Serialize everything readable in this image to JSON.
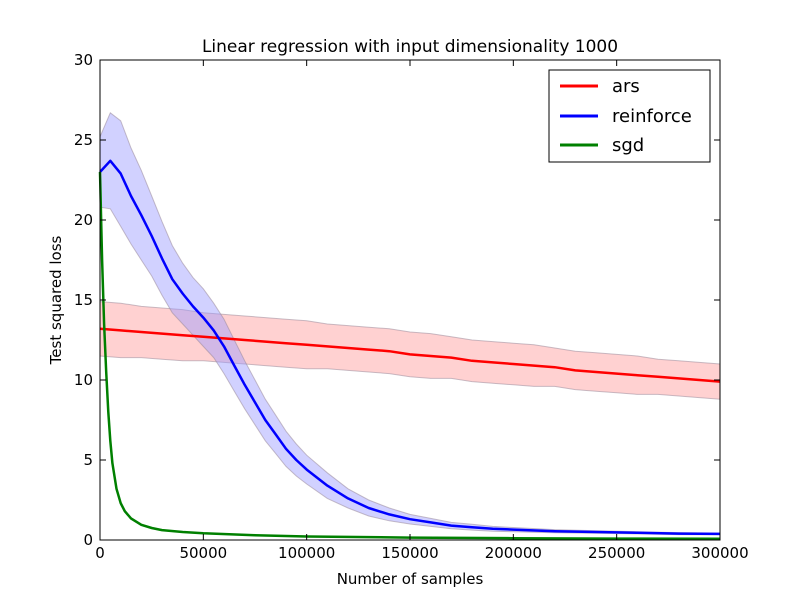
{
  "chart_data": {
    "type": "line",
    "title": "Linear regression with input dimensionality 1000",
    "xlabel": "Number of samples",
    "ylabel": "Test squared loss",
    "xlim": [
      0,
      300000
    ],
    "ylim": [
      0,
      30
    ],
    "x_ticks": [
      0,
      50000,
      100000,
      150000,
      200000,
      250000,
      300000
    ],
    "y_ticks": [
      0,
      5,
      10,
      15,
      20,
      25,
      30
    ],
    "legend_position": "top-right",
    "grid": false,
    "series": [
      {
        "name": "ars",
        "color": "#ff0000",
        "band_color": "#ff9999",
        "x": [
          0,
          10000,
          20000,
          30000,
          40000,
          50000,
          60000,
          70000,
          80000,
          90000,
          100000,
          110000,
          120000,
          130000,
          140000,
          150000,
          160000,
          170000,
          180000,
          190000,
          200000,
          210000,
          220000,
          230000,
          240000,
          250000,
          260000,
          270000,
          280000,
          290000,
          300000
        ],
        "y": [
          13.2,
          13.1,
          13.0,
          12.9,
          12.8,
          12.7,
          12.6,
          12.5,
          12.4,
          12.3,
          12.2,
          12.1,
          12.0,
          11.9,
          11.8,
          11.6,
          11.5,
          11.4,
          11.2,
          11.1,
          11.0,
          10.9,
          10.8,
          10.6,
          10.5,
          10.4,
          10.3,
          10.2,
          10.1,
          10.0,
          9.9
        ],
        "spread": [
          1.7,
          1.7,
          1.6,
          1.6,
          1.6,
          1.5,
          1.5,
          1.5,
          1.5,
          1.5,
          1.5,
          1.4,
          1.4,
          1.4,
          1.4,
          1.4,
          1.4,
          1.3,
          1.3,
          1.3,
          1.3,
          1.3,
          1.2,
          1.2,
          1.2,
          1.2,
          1.2,
          1.1,
          1.1,
          1.1,
          1.1
        ]
      },
      {
        "name": "reinforce",
        "color": "#0000ff",
        "band_color": "#9999ff",
        "x": [
          0,
          5000,
          10000,
          15000,
          20000,
          25000,
          30000,
          35000,
          40000,
          45000,
          50000,
          55000,
          60000,
          65000,
          70000,
          75000,
          80000,
          85000,
          90000,
          95000,
          100000,
          110000,
          120000,
          130000,
          140000,
          150000,
          160000,
          170000,
          180000,
          190000,
          200000,
          220000,
          240000,
          260000,
          280000,
          300000
        ],
        "y": [
          23.0,
          23.7,
          22.9,
          21.5,
          20.3,
          19.0,
          17.6,
          16.3,
          15.4,
          14.6,
          13.9,
          13.1,
          12.1,
          10.9,
          9.7,
          8.6,
          7.5,
          6.6,
          5.7,
          5.0,
          4.4,
          3.4,
          2.6,
          2.0,
          1.6,
          1.3,
          1.1,
          0.9,
          0.8,
          0.7,
          0.65,
          0.55,
          0.5,
          0.45,
          0.4,
          0.38
        ],
        "spread": [
          2.2,
          3.0,
          3.3,
          3.0,
          2.8,
          2.5,
          2.3,
          2.1,
          1.9,
          1.8,
          1.8,
          1.7,
          1.7,
          1.6,
          1.5,
          1.4,
          1.3,
          1.2,
          1.1,
          1.0,
          0.9,
          0.8,
          0.6,
          0.5,
          0.4,
          0.3,
          0.25,
          0.2,
          0.18,
          0.15,
          0.13,
          0.1,
          0.08,
          0.07,
          0.06,
          0.05
        ]
      },
      {
        "name": "sgd",
        "color": "#008000",
        "band_color": "#99cc99",
        "x": [
          0,
          1000,
          2000,
          3000,
          4000,
          5000,
          6000,
          8000,
          10000,
          12000,
          15000,
          20000,
          25000,
          30000,
          40000,
          50000,
          75000,
          100000,
          150000,
          200000,
          250000,
          300000
        ],
        "y": [
          23.0,
          17.5,
          13.5,
          10.5,
          8.0,
          6.2,
          4.8,
          3.2,
          2.3,
          1.8,
          1.35,
          0.95,
          0.75,
          0.62,
          0.5,
          0.42,
          0.3,
          0.22,
          0.15,
          0.11,
          0.09,
          0.08
        ],
        "spread": [
          0.5,
          0.4,
          0.35,
          0.3,
          0.25,
          0.2,
          0.15,
          0.1,
          0.08,
          0.06,
          0.05,
          0.04,
          0.03,
          0.03,
          0.02,
          0.02,
          0.02,
          0.01,
          0.01,
          0.01,
          0.01,
          0.01
        ]
      }
    ]
  }
}
